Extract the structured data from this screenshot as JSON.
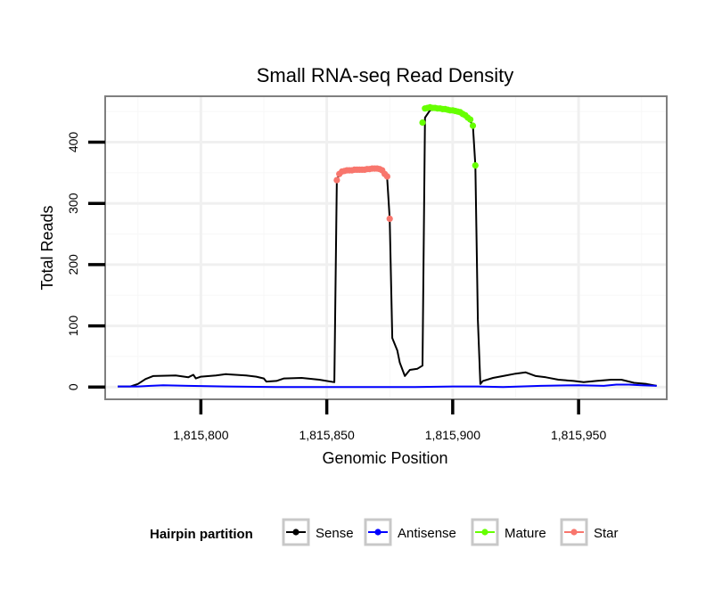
{
  "chart_data": {
    "type": "line",
    "title": "Small RNA-seq Read Density",
    "xlabel": "Genomic Position",
    "ylabel": "Total Reads",
    "xlim": [
      1815762,
      1815985
    ],
    "ylim": [
      -20,
      475
    ],
    "x_ticks": [
      1815800,
      1815850,
      1815900,
      1815950
    ],
    "x_tick_labels": [
      "1,815,800",
      "1,815,850",
      "1,815,900",
      "1,815,950"
    ],
    "y_ticks": [
      0,
      100,
      200,
      300,
      400
    ],
    "y_tick_labels": [
      "0",
      "100",
      "200",
      "300",
      "400"
    ],
    "grid": true,
    "legend": {
      "title": "Hairpin partition",
      "position": "bottom",
      "entries": [
        {
          "label": "Sense",
          "color": "#000000"
        },
        {
          "label": "Antisense",
          "color": "#0000ff"
        },
        {
          "label": "Mature",
          "color": "#66ff00"
        },
        {
          "label": "Star",
          "color": "#f8766d"
        }
      ]
    },
    "series": [
      {
        "name": "Sense",
        "color": "#000000",
        "style": "line",
        "x": [
          1815767,
          1815772,
          1815775,
          1815778,
          1815781,
          1815790,
          1815795,
          1815797,
          1815798,
          1815800,
          1815806,
          1815810,
          1815818,
          1815822,
          1815825,
          1815826,
          1815830,
          1815833,
          1815840,
          1815847,
          1815853,
          1815854,
          1815856,
          1815860,
          1815865,
          1815870,
          1815872,
          1815874,
          1815875,
          1815876,
          1815878,
          1815879,
          1815881,
          1815883,
          1815886,
          1815888,
          1815889,
          1815891,
          1815895,
          1815900,
          1815905,
          1815908,
          1815909,
          1815910,
          1815911,
          1815912,
          1815916,
          1815920,
          1815925,
          1815929,
          1815933,
          1815937,
          1815942,
          1815948,
          1815952,
          1815957,
          1815963,
          1815967,
          1815972,
          1815977,
          1815981
        ],
        "y": [
          1,
          1,
          5,
          13,
          18,
          19,
          16,
          20,
          14,
          17,
          19,
          21,
          19,
          17,
          14,
          9,
          10,
          14,
          15,
          12,
          8,
          340,
          352,
          354,
          355,
          356,
          350,
          340,
          275,
          80,
          60,
          40,
          18,
          28,
          30,
          35,
          440,
          452,
          455,
          450,
          445,
          428,
          362,
          110,
          5,
          10,
          15,
          18,
          22,
          24,
          18,
          16,
          12,
          10,
          8,
          10,
          12,
          12,
          7,
          5,
          2
        ]
      },
      {
        "name": "Antisense",
        "color": "#0000ff",
        "style": "line",
        "x": [
          1815767,
          1815775,
          1815780,
          1815785,
          1815795,
          1815810,
          1815830,
          1815850,
          1815870,
          1815885,
          1815900,
          1815910,
          1815920,
          1815935,
          1815950,
          1815960,
          1815965,
          1815970,
          1815975,
          1815981
        ],
        "y": [
          1,
          1,
          2,
          3,
          2,
          1,
          0,
          0,
          0,
          0,
          1,
          1,
          0,
          2,
          3,
          2,
          4,
          4,
          3,
          2
        ]
      },
      {
        "name": "Mature",
        "color": "#66ff00",
        "style": "points",
        "x": [
          1815888,
          1815889,
          1815890,
          1815891,
          1815892,
          1815893,
          1815894,
          1815895,
          1815896,
          1815897,
          1815898,
          1815899,
          1815900,
          1815901,
          1815902,
          1815903,
          1815904,
          1815905,
          1815906,
          1815907,
          1815908,
          1815909
        ],
        "y": [
          432,
          455,
          456,
          457,
          456,
          456,
          455,
          455,
          454,
          454,
          453,
          452,
          452,
          451,
          450,
          449,
          446,
          444,
          440,
          437,
          427,
          362
        ]
      },
      {
        "name": "Star",
        "color": "#f8766d",
        "style": "points",
        "x": [
          1815854,
          1815855,
          1815856,
          1815857,
          1815858,
          1815859,
          1815860,
          1815861,
          1815862,
          1815863,
          1815864,
          1815865,
          1815866,
          1815867,
          1815868,
          1815869,
          1815870,
          1815871,
          1815872,
          1815873,
          1815874,
          1815875
        ],
        "y": [
          338,
          348,
          352,
          353,
          354,
          354,
          354,
          355,
          355,
          355,
          355,
          355,
          356,
          356,
          357,
          357,
          357,
          356,
          354,
          348,
          344,
          275
        ]
      }
    ]
  }
}
